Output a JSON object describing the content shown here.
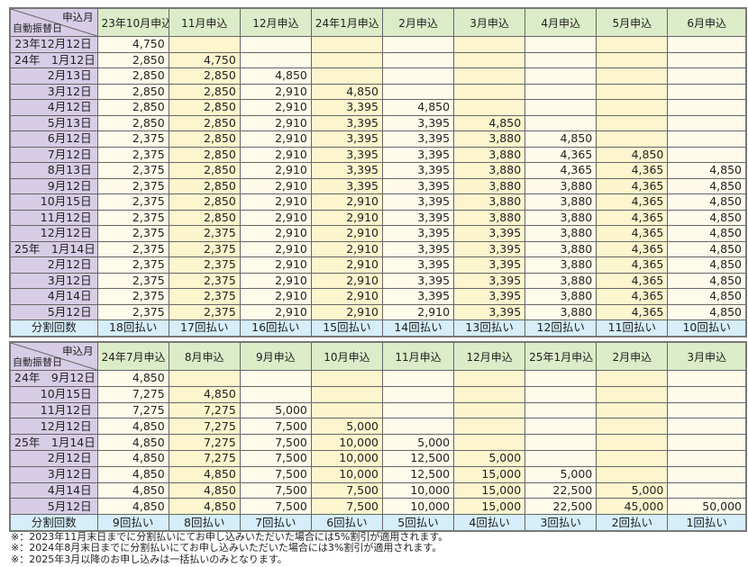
{
  "corner": {
    "top": "申込月",
    "bottom": "自動振替日"
  },
  "footer_label": "分割回数",
  "table1": {
    "columns": [
      "23年10月申込",
      "11月申込",
      "12月申込",
      "24年1月申込",
      "2月申込",
      "3月申込",
      "4月申込",
      "5月申込",
      "6月申込"
    ],
    "rows": [
      {
        "date": "23年12月12日",
        "values": [
          "4,750",
          "",
          "",
          "",
          "",
          "",
          "",
          "",
          ""
        ]
      },
      {
        "date": "24年　1月12日",
        "values": [
          "2,850",
          "4,750",
          "",
          "",
          "",
          "",
          "",
          "",
          ""
        ]
      },
      {
        "date": "2月13日",
        "values": [
          "2,850",
          "2,850",
          "4,850",
          "",
          "",
          "",
          "",
          "",
          ""
        ]
      },
      {
        "date": "3月12日",
        "values": [
          "2,850",
          "2,850",
          "2,910",
          "4,850",
          "",
          "",
          "",
          "",
          ""
        ]
      },
      {
        "date": "4月12日",
        "values": [
          "2,850",
          "2,850",
          "2,910",
          "3,395",
          "4,850",
          "",
          "",
          "",
          ""
        ]
      },
      {
        "date": "5月13日",
        "values": [
          "2,850",
          "2,850",
          "2,910",
          "3,395",
          "3,395",
          "4,850",
          "",
          "",
          ""
        ]
      },
      {
        "date": "6月12日",
        "values": [
          "2,375",
          "2,850",
          "2,910",
          "3,395",
          "3,395",
          "3,880",
          "4,850",
          "",
          ""
        ]
      },
      {
        "date": "7月12日",
        "values": [
          "2,375",
          "2,850",
          "2,910",
          "3,395",
          "3,395",
          "3,880",
          "4,365",
          "4,850",
          ""
        ]
      },
      {
        "date": "8月13日",
        "values": [
          "2,375",
          "2,850",
          "2,910",
          "3,395",
          "3,395",
          "3,880",
          "4,365",
          "4,365",
          "4,850"
        ]
      },
      {
        "date": "9月12日",
        "values": [
          "2,375",
          "2,850",
          "2,910",
          "3,395",
          "3,395",
          "3,880",
          "3,880",
          "4,365",
          "4,850"
        ]
      },
      {
        "date": "10月15日",
        "values": [
          "2,375",
          "2,850",
          "2,910",
          "2,910",
          "3,395",
          "3,880",
          "3,880",
          "4,365",
          "4,850"
        ]
      },
      {
        "date": "11月12日",
        "values": [
          "2,375",
          "2,850",
          "2,910",
          "2,910",
          "3,395",
          "3,880",
          "3,880",
          "4,365",
          "4,850"
        ]
      },
      {
        "date": "12月12日",
        "values": [
          "2,375",
          "2,375",
          "2,910",
          "2,910",
          "3,395",
          "3,395",
          "3,880",
          "4,365",
          "4,850"
        ]
      },
      {
        "date": "25年　1月14日",
        "values": [
          "2,375",
          "2,375",
          "2,910",
          "2,910",
          "3,395",
          "3,395",
          "3,880",
          "4,365",
          "4,850"
        ]
      },
      {
        "date": "2月12日",
        "values": [
          "2,375",
          "2,375",
          "2,910",
          "2,910",
          "3,395",
          "3,395",
          "3,880",
          "4,365",
          "4,850"
        ]
      },
      {
        "date": "3月12日",
        "values": [
          "2,375",
          "2,375",
          "2,910",
          "2,910",
          "3,395",
          "3,395",
          "3,880",
          "4,365",
          "4,850"
        ]
      },
      {
        "date": "4月14日",
        "values": [
          "2,375",
          "2,375",
          "2,910",
          "2,910",
          "3,395",
          "3,395",
          "3,880",
          "4,365",
          "4,850"
        ]
      },
      {
        "date": "5月12日",
        "values": [
          "2,375",
          "2,375",
          "2,910",
          "2,910",
          "2,910",
          "3,395",
          "3,880",
          "4,365",
          "4,850"
        ]
      }
    ],
    "installments": [
      "18回払い",
      "17回払い",
      "16回払い",
      "15回払い",
      "14回払い",
      "13回払い",
      "12回払い",
      "11回払い",
      "10回払い"
    ]
  },
  "table2": {
    "columns": [
      "24年7月申込",
      "8月申込",
      "9月申込",
      "10月申込",
      "11月申込",
      "12月申込",
      "25年1月申込",
      "2月申込",
      "3月申込"
    ],
    "rows": [
      {
        "date": "24年　9月12日",
        "values": [
          "4,850",
          "",
          "",
          "",
          "",
          "",
          "",
          "",
          ""
        ]
      },
      {
        "date": "10月15日",
        "values": [
          "7,275",
          "4,850",
          "",
          "",
          "",
          "",
          "",
          "",
          ""
        ]
      },
      {
        "date": "11月12日",
        "values": [
          "7,275",
          "7,275",
          "5,000",
          "",
          "",
          "",
          "",
          "",
          ""
        ]
      },
      {
        "date": "12月12日",
        "values": [
          "4,850",
          "7,275",
          "7,500",
          "5,000",
          "",
          "",
          "",
          "",
          ""
        ]
      },
      {
        "date": "25年　1月14日",
        "values": [
          "4,850",
          "7,275",
          "7,500",
          "10,000",
          "5,000",
          "",
          "",
          "",
          ""
        ]
      },
      {
        "date": "2月12日",
        "values": [
          "4,850",
          "7,275",
          "7,500",
          "10,000",
          "12,500",
          "5,000",
          "",
          "",
          ""
        ]
      },
      {
        "date": "3月12日",
        "values": [
          "4,850",
          "4,850",
          "7,500",
          "10,000",
          "12,500",
          "15,000",
          "5,000",
          "",
          ""
        ]
      },
      {
        "date": "4月14日",
        "values": [
          "4,850",
          "4,850",
          "7,500",
          "7,500",
          "10,000",
          "15,000",
          "22,500",
          "5,000",
          ""
        ]
      },
      {
        "date": "5月12日",
        "values": [
          "4,850",
          "4,850",
          "7,500",
          "7,500",
          "10,000",
          "15,000",
          "22,500",
          "45,000",
          "50,000"
        ]
      }
    ],
    "installments": [
      "9回払い",
      "8回払い",
      "7回払い",
      "6回払い",
      "5回払い",
      "4回払い",
      "3回払い",
      "2回払い",
      "1回払い"
    ]
  },
  "notes": [
    "※：2023年11月末日までに分割払いにてお申し込みいただいた場合には5%割引が適用されます。",
    "※：2024年8月末日までに分割払いにてお申し込みいただいた場合には3%割引が適用されます。",
    "※：2025年3月以降のお申し込みは一括払いのみとなります。"
  ]
}
